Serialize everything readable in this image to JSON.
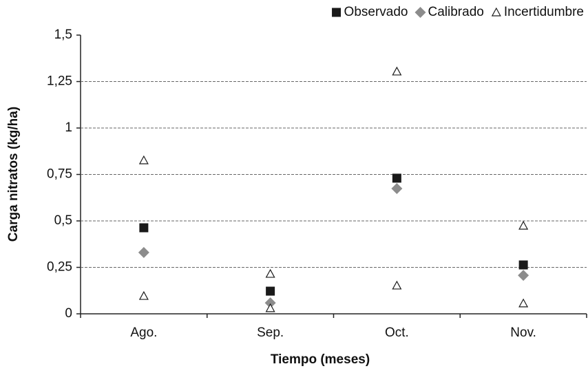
{
  "chart_data": {
    "type": "scatter",
    "x_label": "Tiempo (meses)",
    "y_label": "Carga nitratos (kg/ha)",
    "categories": [
      "Ago.",
      "Sep.",
      "Oct.",
      "Nov."
    ],
    "series": [
      {
        "name": "Observado",
        "color": "#1a1a1a",
        "marker": "square",
        "values": [
          0.463,
          0.122,
          0.73,
          0.263
        ]
      },
      {
        "name": "Calibrado",
        "color": "#8c8c8c",
        "marker": "diamond",
        "values": [
          0.33,
          0.059,
          0.674,
          0.207
        ]
      },
      {
        "name": "Incertidumbre",
        "color": "#1a1a1a",
        "marker": "triangle",
        "values": [
          [
            0.096,
            0.826
          ],
          [
            0.03,
            0.215
          ],
          [
            0.152,
            1.304
          ],
          [
            0.056,
            0.474
          ]
        ]
      }
    ],
    "ylim": [
      0,
      1.5
    ],
    "yticks": [
      0,
      {
        "value": 0.25,
        "label": "0,25"
      },
      {
        "value": 0.5,
        "label": "0,5"
      },
      {
        "value": 0.75,
        "label": "0,75"
      },
      1,
      {
        "value": 1.25,
        "label": "1,25"
      },
      {
        "value": 1.5,
        "label": "1,5"
      }
    ],
    "grid": true,
    "legend": "top-right"
  }
}
